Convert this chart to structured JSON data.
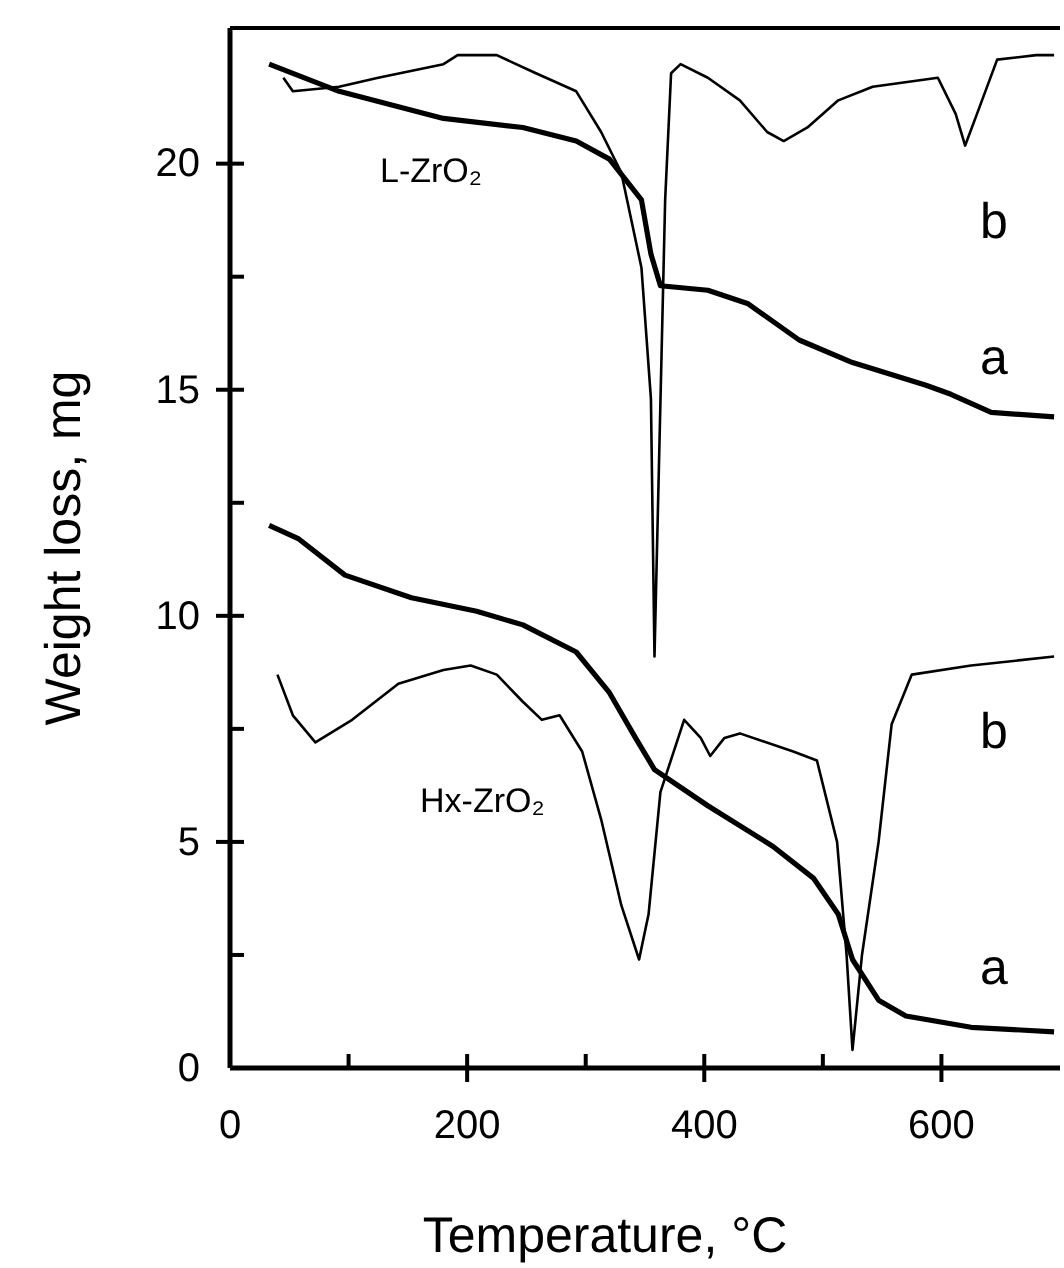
{
  "chart_data": {
    "type": "line",
    "xlabel": "Temperature, °C",
    "ylabel": "Weight loss, mg",
    "xlim": [
      0,
      700
    ],
    "ylim": [
      0,
      23
    ],
    "xticks": [
      0,
      {
        "value": 100,
        "label": null
      },
      200,
      {
        "value": 300,
        "label": null
      },
      400,
      {
        "value": 500,
        "label": null
      },
      600
    ],
    "yticks": [
      0,
      {
        "value": 2.5,
        "label": null
      },
      5,
      {
        "value": 7.5,
        "label": null
      },
      10,
      {
        "value": 12.5,
        "label": null
      },
      15,
      {
        "value": 17.5,
        "label": null
      },
      20
    ],
    "grid": false,
    "marker": "none",
    "line_style": "solid",
    "series": [
      {
        "color": "#000000",
        "x": [
          33,
          92,
          180,
          247,
          292,
          320,
          347,
          355,
          363,
          403,
          437,
          480,
          525,
          587,
          608,
          642,
          695
        ],
        "values": [
          22.2,
          21.6,
          21.0,
          20.8,
          20.5,
          20.1,
          19.2,
          18.0,
          17.3,
          17.2,
          16.9,
          16.1,
          15.6,
          15.1,
          14.9,
          14.5,
          14.4
        ]
      },
      {
        "color": "#000000",
        "x": [
          45,
          53,
          92,
          125,
          180,
          192,
          225,
          258,
          292,
          313,
          330,
          347,
          355,
          358,
          367,
          372,
          380,
          403,
          430,
          453,
          467,
          487,
          513,
          542,
          597,
          612,
          620,
          630,
          647,
          680,
          695
        ],
        "values": [
          21.9,
          21.6,
          21.7,
          21.9,
          22.2,
          22.4,
          22.4,
          22.0,
          21.6,
          20.7,
          19.8,
          17.7,
          14.8,
          9.1,
          19.2,
          22.0,
          22.2,
          21.9,
          21.4,
          20.7,
          20.5,
          20.8,
          21.4,
          21.7,
          21.9,
          21.1,
          20.4,
          21.1,
          22.3,
          22.4,
          22.4
        ]
      },
      {
        "color": "#000000",
        "x": [
          33,
          58,
          97,
          153,
          208,
          247,
          292,
          320,
          342,
          358,
          403,
          458,
          492,
          513,
          525,
          547,
          570,
          625,
          695
        ],
        "values": [
          12.0,
          11.7,
          10.9,
          10.4,
          10.1,
          9.8,
          9.2,
          8.3,
          7.3,
          6.6,
          5.8,
          4.9,
          4.2,
          3.4,
          2.4,
          1.5,
          1.15,
          0.9,
          0.8
        ]
      },
      {
        "color": "#000000",
        "x": [
          40,
          53,
          72,
          103,
          142,
          180,
          203,
          225,
          247,
          263,
          278,
          297,
          313,
          330,
          345,
          353,
          363,
          383,
          397,
          405,
          417,
          430,
          475,
          495,
          512,
          520,
          525,
          533,
          547,
          558,
          575,
          625,
          695
        ],
        "values": [
          8.7,
          7.8,
          7.2,
          7.7,
          8.5,
          8.8,
          8.9,
          8.7,
          8.1,
          7.7,
          7.8,
          7.0,
          5.5,
          3.6,
          2.4,
          3.4,
          6.1,
          7.7,
          7.3,
          6.9,
          7.3,
          7.4,
          7.0,
          6.8,
          5.0,
          2.5,
          0.4,
          2.5,
          5.0,
          7.6,
          8.7,
          8.9,
          9.1
        ]
      }
    ],
    "annotations": [
      "L-ZrO₂",
      "b",
      "a",
      "Hx-ZrO₂",
      "b",
      "a"
    ]
  }
}
